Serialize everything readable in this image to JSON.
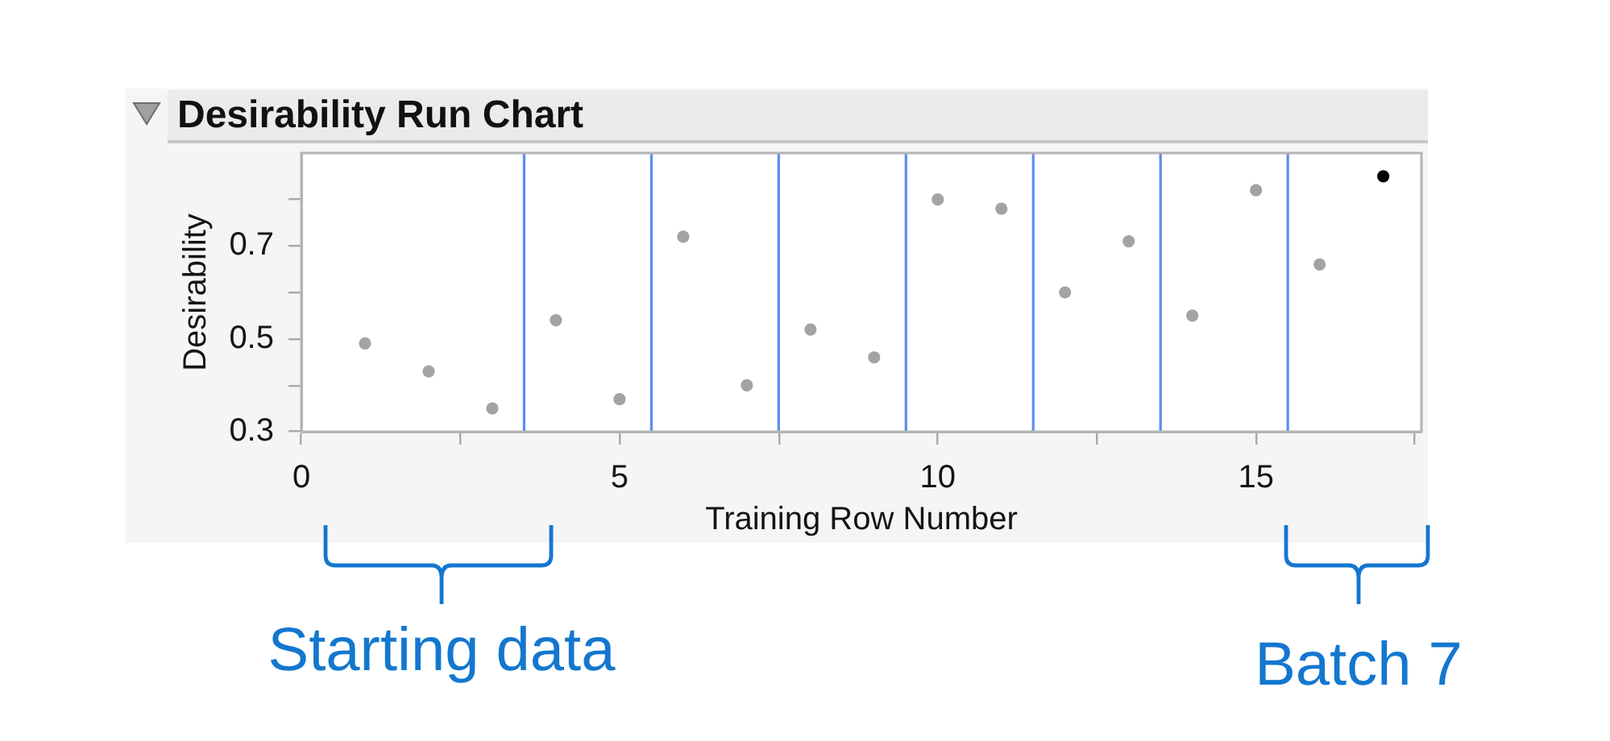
{
  "chart_data": {
    "type": "scatter",
    "title": "Desirability Run Chart",
    "xlabel": "Training Row Number",
    "ylabel": "Desirability",
    "x": [
      1,
      2,
      3,
      4,
      5,
      6,
      7,
      8,
      9,
      10,
      11,
      12,
      13,
      14,
      15,
      16,
      17
    ],
    "values": [
      0.49,
      0.43,
      0.35,
      0.54,
      0.37,
      0.72,
      0.4,
      0.52,
      0.46,
      0.8,
      0.78,
      0.6,
      0.71,
      0.55,
      0.82,
      0.66,
      0.85
    ],
    "colors": [
      "#a3a3a3",
      "#a3a3a3",
      "#a3a3a3",
      "#a3a3a3",
      "#a3a3a3",
      "#a3a3a3",
      "#a3a3a3",
      "#a3a3a3",
      "#a3a3a3",
      "#a3a3a3",
      "#a3a3a3",
      "#a3a3a3",
      "#a3a3a3",
      "#a3a3a3",
      "#a3a3a3",
      "#a3a3a3",
      "#000000"
    ],
    "marker": "circle",
    "xlim": [
      0,
      17.6
    ],
    "xticks": [
      0,
      {
        "value": 2.5,
        "label": null
      },
      5,
      {
        "value": 7.5,
        "label": null
      },
      10,
      {
        "value": 12.5,
        "label": null
      },
      15,
      {
        "value": 17.5,
        "label": null
      }
    ],
    "ylim": [
      0.3,
      0.9
    ],
    "yticks": [
      0.3,
      {
        "value": 0.4,
        "label": null
      },
      0.5,
      {
        "value": 0.6,
        "label": null
      },
      0.7,
      {
        "value": 0.8,
        "label": null
      }
    ],
    "ref_lines": [
      {
        "axis": "x",
        "value": 3.5,
        "color": "#5b8def"
      },
      {
        "axis": "x",
        "value": 5.5,
        "color": "#5b8def"
      },
      {
        "axis": "x",
        "value": 7.5,
        "color": "#5b8def"
      },
      {
        "axis": "x",
        "value": 9.5,
        "color": "#5b8def"
      },
      {
        "axis": "x",
        "value": 11.5,
        "color": "#5b8def"
      },
      {
        "axis": "x",
        "value": 13.5,
        "color": "#5b8def"
      },
      {
        "axis": "x",
        "value": 15.5,
        "color": "#5b8def"
      }
    ],
    "annotations": [
      "Starting data",
      "Batch 7"
    ]
  }
}
